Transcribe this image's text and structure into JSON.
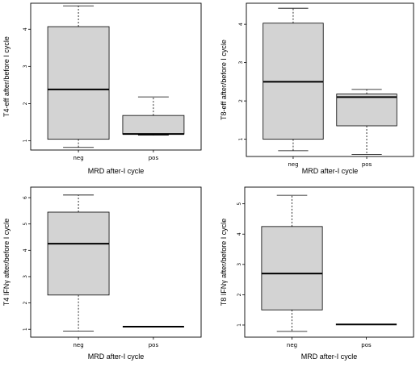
{
  "chart_data": [
    {
      "type": "box",
      "ylabel": "T4-eff after/before I cycle",
      "xlabel": "MRD after-I cycle",
      "categories": [
        "neg",
        "pos"
      ],
      "yticks": [
        1,
        2,
        3,
        4
      ],
      "ylim": [
        0.75,
        4.7
      ],
      "boxes": [
        {
          "category": "neg",
          "min": 0.82,
          "q1": 1.04,
          "median": 2.38,
          "q3": 4.07,
          "max": 4.63
        },
        {
          "category": "pos",
          "min": 1.15,
          "q1": 1.18,
          "median": 1.18,
          "q3": 1.68,
          "max": 2.18
        }
      ]
    },
    {
      "type": "box",
      "ylabel": "T8-eff after/before I cycle",
      "xlabel": "MRD after-I cycle",
      "categories": [
        "neg",
        "pos"
      ],
      "yticks": [
        1,
        2,
        3,
        4
      ],
      "ylim": [
        0.55,
        4.55
      ],
      "boxes": [
        {
          "category": "neg",
          "min": 0.7,
          "q1": 1.0,
          "median": 2.5,
          "q3": 4.03,
          "max": 4.42
        },
        {
          "category": "pos",
          "min": 0.6,
          "q1": 1.35,
          "median": 2.1,
          "q3": 2.18,
          "max": 2.3
        }
      ]
    },
    {
      "type": "box",
      "ylabel": "T4 IFNγ after/before I cycle",
      "xlabel": "MRD after-I cycle",
      "categories": [
        "neg",
        "pos"
      ],
      "yticks": [
        1,
        2,
        3,
        4,
        5,
        6
      ],
      "ylim": [
        0.7,
        6.4
      ],
      "boxes": [
        {
          "category": "neg",
          "min": 0.93,
          "q1": 2.3,
          "median": 4.25,
          "q3": 5.45,
          "max": 6.1
        },
        {
          "category": "pos",
          "min": 1.1,
          "q1": 1.1,
          "median": 1.1,
          "q3": 1.1,
          "max": 1.1
        }
      ]
    },
    {
      "type": "box",
      "ylabel": "T8 IFNγ after/before I cycle",
      "xlabel": "MRD after-I cycle",
      "categories": [
        "neg",
        "pos"
      ],
      "yticks": [
        1,
        2,
        3,
        4,
        5
      ],
      "ylim": [
        0.6,
        5.55
      ],
      "boxes": [
        {
          "category": "neg",
          "min": 0.79,
          "q1": 1.5,
          "median": 2.7,
          "q3": 4.25,
          "max": 5.28
        },
        {
          "category": "pos",
          "min": 1.02,
          "q1": 1.02,
          "median": 1.02,
          "q3": 1.02,
          "max": 1.02
        }
      ]
    }
  ]
}
